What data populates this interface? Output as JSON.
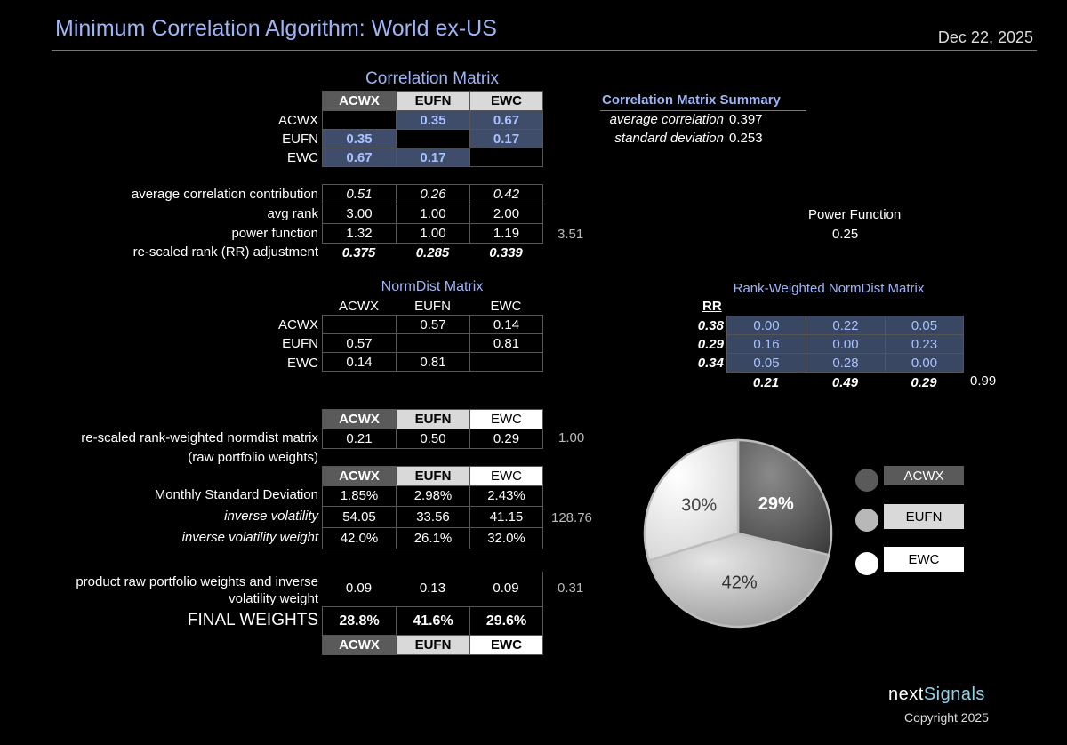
{
  "header": {
    "title": "Minimum Correlation Algorithm:  World ex-US",
    "date": "Dec 22, 2025"
  },
  "tickers": [
    "ACWX",
    "EUFN",
    "EWC"
  ],
  "correlation_matrix": {
    "title": "Correlation Matrix",
    "rows": [
      [
        "",
        "0.35",
        "0.67"
      ],
      [
        "0.35",
        "",
        "0.17"
      ],
      [
        "0.67",
        "0.17",
        ""
      ]
    ]
  },
  "summary": {
    "title": "Correlation Matrix Summary",
    "avg_label": "average correlation",
    "avg_value": "0.397",
    "sd_label": "standard deviation",
    "sd_value": "0.253"
  },
  "stats": {
    "labels": [
      "average correlation contribution",
      "avg rank",
      "power function",
      "re-scaled rank (RR) adjustment"
    ],
    "avg_corr": [
      "0.51",
      "0.26",
      "0.42"
    ],
    "avg_rank": [
      "3.00",
      "1.00",
      "2.00"
    ],
    "power": [
      "1.32",
      "1.00",
      "1.19"
    ],
    "rr": [
      "0.375",
      "0.285",
      "0.339"
    ],
    "power_sum": "3.51"
  },
  "power_function": {
    "label": "Power Function",
    "value": "0.25"
  },
  "normdist": {
    "title": "NormDist Matrix",
    "rows": [
      [
        "",
        "0.57",
        "0.14"
      ],
      [
        "0.57",
        "",
        "0.81"
      ],
      [
        "0.14",
        "0.81",
        ""
      ]
    ]
  },
  "rank_weighted": {
    "title": "Rank-Weighted NormDist Matrix",
    "rr_header": "RR",
    "rr": [
      "0.38",
      "0.29",
      "0.34"
    ],
    "rows": [
      [
        "0.00",
        "0.22",
        "0.05"
      ],
      [
        "0.16",
        "0.00",
        "0.23"
      ],
      [
        "0.05",
        "0.28",
        "0.00"
      ]
    ],
    "col_sums": [
      "0.21",
      "0.49",
      "0.29"
    ],
    "total": "0.99"
  },
  "raw_weights": {
    "label": "re-scaled rank-weighted normdist matrix",
    "sublabel": "(raw portfolio weights)",
    "values": [
      "0.21",
      "0.50",
      "0.29"
    ],
    "total": "1.00"
  },
  "volatility": {
    "labels": [
      "Monthly Standard Deviation",
      "inverse volatility",
      "inverse volatility weight"
    ],
    "msd": [
      "1.85%",
      "2.98%",
      "2.43%"
    ],
    "inv": [
      "54.05",
      "33.56",
      "41.15"
    ],
    "inv_weight": [
      "42.0%",
      "26.1%",
      "32.0%"
    ],
    "inv_total": "128.76"
  },
  "product": {
    "label": "product raw portfolio weights and inverse volatility weight",
    "values": [
      "0.09",
      "0.13",
      "0.09"
    ],
    "total": "0.31"
  },
  "final": {
    "label": "FINAL WEIGHTS",
    "values": [
      "28.8%",
      "41.6%",
      "29.6%"
    ]
  },
  "colors": {
    "acwx": "#5a5a5a",
    "eufn": "#c8c8c8",
    "ewc": "#ffffff",
    "accent": "#9db4f5"
  },
  "chart_data": {
    "type": "pie",
    "categories": [
      "ACWX",
      "EUFN",
      "EWC"
    ],
    "values": [
      29,
      42,
      30
    ],
    "labels": [
      "29%",
      "42%",
      "30%"
    ],
    "legend": [
      "ACWX",
      "EUFN",
      "EWC"
    ]
  },
  "footer": {
    "brand_a": "next",
    "brand_b": "Signals",
    "copyright": "Copyright 2025"
  }
}
